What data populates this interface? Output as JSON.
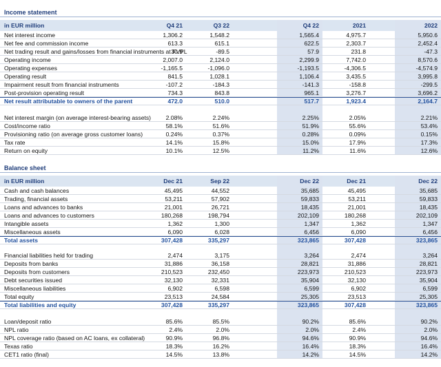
{
  "income_statement": {
    "title": "Income statement",
    "header": [
      "in EUR million",
      "Q4 21",
      "Q3 22",
      "Q4 22",
      "2021",
      "2022"
    ],
    "groups": [
      [
        {
          "label": "Net interest income",
          "values": [
            "1,306.2",
            "1,548.2",
            "1,565.4",
            "4,975.7",
            "5,950.6"
          ]
        },
        {
          "label": "Net fee and commission income",
          "values": [
            "613.3",
            "615.1",
            "622.5",
            "2,303.7",
            "2,452.4"
          ]
        },
        {
          "label": "Net trading result and gains/losses from financial instruments at FVPL",
          "values": [
            "30.9",
            "-89.5",
            "57.9",
            "231.8",
            "-47.3"
          ]
        },
        {
          "label": "Operating income",
          "values": [
            "2,007.0",
            "2,124.0",
            "2,299.9",
            "7,742.0",
            "8,570.6"
          ]
        },
        {
          "label": "Operating expenses",
          "values": [
            "-1,165.5",
            "-1,096.0",
            "-1,193.5",
            "-4,306.5",
            "-4,574.9"
          ]
        },
        {
          "label": "Operating result",
          "values": [
            "841.5",
            "1,028.1",
            "1,106.4",
            "3,435.5",
            "3,995.8"
          ]
        },
        {
          "label": "Impairment result from financial instruments",
          "values": [
            "-107.2",
            "-184.3",
            "-141.3",
            "-158.8",
            "-299.5"
          ]
        },
        {
          "label": "Post-provision operating result",
          "values": [
            "734.3",
            "843.8",
            "965.1",
            "3,276.7",
            "3,696.2"
          ]
        },
        {
          "label": "Net result attributable to owners of the parent",
          "values": [
            "472.0",
            "510.0",
            "517.7",
            "1,923.4",
            "2,164.7"
          ],
          "total": true
        }
      ],
      [
        {
          "label": "Net interest margin (on average interest-bearing assets)",
          "values": [
            "2.08%",
            "2.24%",
            "2.25%",
            "2.05%",
            "2.21%"
          ]
        },
        {
          "label": "Cost/income ratio",
          "values": [
            "58.1%",
            "51.6%",
            "51.9%",
            "55.6%",
            "53.4%"
          ]
        },
        {
          "label": "Provisioning ratio (on average gross customer loans)",
          "values": [
            "0.24%",
            "0.37%",
            "0.28%",
            "0.09%",
            "0.15%"
          ]
        },
        {
          "label": "Tax rate",
          "values": [
            "14.1%",
            "15.8%",
            "15.0%",
            "17.9%",
            "17.3%"
          ]
        },
        {
          "label": "Return on equity",
          "values": [
            "10.1%",
            "12.5%",
            "11.2%",
            "11.6%",
            "12.6%"
          ]
        }
      ]
    ]
  },
  "balance_sheet": {
    "title": "Balance sheet",
    "header": [
      "in EUR million",
      "Dec 21",
      "Sep 22",
      "Dec 22",
      "Dec 21",
      "Dec 22"
    ],
    "groups": [
      [
        {
          "label": "Cash and cash balances",
          "values": [
            "45,495",
            "44,552",
            "35,685",
            "45,495",
            "35,685"
          ]
        },
        {
          "label": "Trading, financial assets",
          "values": [
            "53,211",
            "57,902",
            "59,833",
            "53,211",
            "59,833"
          ]
        },
        {
          "label": "Loans and advances to banks",
          "values": [
            "21,001",
            "26,721",
            "18,435",
            "21,001",
            "18,435"
          ]
        },
        {
          "label": "Loans and advances to customers",
          "values": [
            "180,268",
            "198,794",
            "202,109",
            "180,268",
            "202,109"
          ]
        },
        {
          "label": "Intangible assets",
          "values": [
            "1,362",
            "1,300",
            "1,347",
            "1,362",
            "1,347"
          ]
        },
        {
          "label": "Miscellaneous assets",
          "values": [
            "6,090",
            "6,028",
            "6,456",
            "6,090",
            "6,456"
          ]
        },
        {
          "label": "Total assets",
          "values": [
            "307,428",
            "335,297",
            "323,865",
            "307,428",
            "323,865"
          ],
          "total": true
        }
      ],
      [
        {
          "label": "Financial liabilities held for trading",
          "values": [
            "2,474",
            "3,175",
            "3,264",
            "2,474",
            "3,264"
          ]
        },
        {
          "label": "Deposits from banks",
          "values": [
            "31,886",
            "36,158",
            "28,821",
            "31,886",
            "28,821"
          ]
        },
        {
          "label": "Deposits from customers",
          "values": [
            "210,523",
            "232,450",
            "223,973",
            "210,523",
            "223,973"
          ]
        },
        {
          "label": "Debt securities issued",
          "values": [
            "32,130",
            "32,331",
            "35,904",
            "32,130",
            "35,904"
          ]
        },
        {
          "label": "Miscellaneous liabilities",
          "values": [
            "6,902",
            "6,598",
            "6,599",
            "6,902",
            "6,599"
          ]
        },
        {
          "label": "Total equity",
          "values": [
            "23,513",
            "24,584",
            "25,305",
            "23,513",
            "25,305"
          ]
        },
        {
          "label": "Total liabilities and equity",
          "values": [
            "307,428",
            "335,297",
            "323,865",
            "307,428",
            "323,865"
          ],
          "total": true
        }
      ],
      [
        {
          "label": "Loan/deposit ratio",
          "values": [
            "85.6%",
            "85.5%",
            "90.2%",
            "85.6%",
            "90.2%"
          ]
        },
        {
          "label": "NPL ratio",
          "values": [
            "2.4%",
            "2.0%",
            "2.0%",
            "2.4%",
            "2.0%"
          ]
        },
        {
          "label": "NPL coverage ratio (based on AC loans, ex collateral)",
          "values": [
            "90.9%",
            "96.8%",
            "94.6%",
            "90.9%",
            "94.6%"
          ]
        },
        {
          "label": "Texas ratio",
          "values": [
            "18.3%",
            "16.2%",
            "16.4%",
            "18.3%",
            "16.4%"
          ]
        },
        {
          "label": "CET1 ratio (final)",
          "values": [
            "14.5%",
            "13.8%",
            "14.2%",
            "14.5%",
            "14.2%"
          ]
        }
      ]
    ]
  }
}
